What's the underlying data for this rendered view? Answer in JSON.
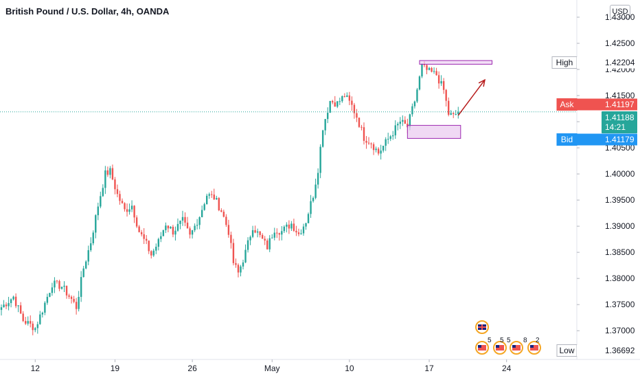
{
  "header": {
    "title": "British Pound / U.S. Dollar, 4h, OANDA",
    "currency": "USD"
  },
  "colors": {
    "up": "#26a69a",
    "down": "#ef5350",
    "ask": "#ef5350",
    "bid": "#2196f3",
    "last": "#26a69a",
    "zone_stroke": "#9c27b0",
    "zone_fill": "#e9c9f0",
    "arrow": "#b71c1c"
  },
  "price_tags": {
    "high": {
      "label": "High",
      "value": "1.42204"
    },
    "low": {
      "label": "Low",
      "value": "1.36692"
    },
    "ask": {
      "label": "Ask",
      "value": "1.41197"
    },
    "bid": {
      "label": "Bid",
      "value": "1.41179"
    },
    "last": {
      "value": "1.41188",
      "countdown": "14:21"
    }
  },
  "events": [
    "5",
    "5",
    "5",
    "8",
    "2"
  ],
  "chart_data": {
    "type": "candlestick",
    "y_axis": {
      "ylim": [
        1.3645,
        1.4325
      ],
      "ticks": [
        "1.43000",
        "1.42500",
        "1.42000",
        "1.41500",
        "1.41000",
        "1.40500",
        "1.40000",
        "1.39500",
        "1.39000",
        "1.38500",
        "1.38000",
        "1.37500",
        "1.37000"
      ]
    },
    "x_axis": {
      "ticks": [
        "12",
        "19",
        "26",
        "May",
        "10",
        "17",
        "24"
      ]
    },
    "anchors": [
      [
        0,
        1.3745
      ],
      [
        5,
        1.3765
      ],
      [
        9,
        1.372
      ],
      [
        14,
        1.3705
      ],
      [
        17,
        1.374
      ],
      [
        21,
        1.379
      ],
      [
        25,
        1.3785
      ],
      [
        29,
        1.376
      ],
      [
        31,
        1.3745
      ],
      [
        34,
        1.382
      ],
      [
        37,
        1.387
      ],
      [
        40,
        1.394
      ],
      [
        43,
        1.4
      ],
      [
        45,
        1.4005
      ],
      [
        48,
        1.396
      ],
      [
        51,
        1.393
      ],
      [
        54,
        1.394
      ],
      [
        57,
        1.389
      ],
      [
        60,
        1.3865
      ],
      [
        62,
        1.3845
      ],
      [
        65,
        1.387
      ],
      [
        68,
        1.3905
      ],
      [
        71,
        1.389
      ],
      [
        75,
        1.391
      ],
      [
        78,
        1.388
      ],
      [
        82,
        1.392
      ],
      [
        85,
        1.396
      ],
      [
        88,
        1.3955
      ],
      [
        91,
        1.393
      ],
      [
        94,
        1.389
      ],
      [
        96,
        1.383
      ],
      [
        98,
        1.381
      ],
      [
        101,
        1.385
      ],
      [
        104,
        1.39
      ],
      [
        107,
        1.388
      ],
      [
        110,
        1.386
      ],
      [
        113,
        1.3895
      ],
      [
        116,
        1.389
      ],
      [
        120,
        1.3905
      ],
      [
        123,
        1.3885
      ],
      [
        126,
        1.391
      ],
      [
        129,
        1.396
      ],
      [
        131,
        1.401
      ],
      [
        133,
        1.409
      ],
      [
        136,
        1.414
      ],
      [
        139,
        1.4135
      ],
      [
        142,
        1.415
      ],
      [
        145,
        1.413
      ],
      [
        147,
        1.411
      ],
      [
        150,
        1.407
      ],
      [
        153,
        1.406
      ],
      [
        156,
        1.404
      ],
      [
        159,
        1.406
      ],
      [
        162,
        1.408
      ],
      [
        165,
        1.41
      ],
      [
        168,
        1.409
      ],
      [
        171,
        1.414
      ],
      [
        174,
        1.4205
      ],
      [
        177,
        1.4195
      ],
      [
        180,
        1.419
      ],
      [
        183,
        1.416
      ],
      [
        185,
        1.4115
      ],
      [
        187,
        1.411
      ],
      [
        189,
        1.4119
      ]
    ],
    "annotations": {
      "resistance_zone": {
        "x": [
          173,
          203
        ],
        "y": [
          1.421,
          1.4217
        ]
      },
      "support_zone": {
        "x": [
          168,
          190
        ],
        "y": [
          1.4068,
          1.4093
        ]
      },
      "arrow": {
        "from": [
          189,
          1.4112
        ],
        "to": [
          200,
          1.418
        ]
      }
    }
  }
}
